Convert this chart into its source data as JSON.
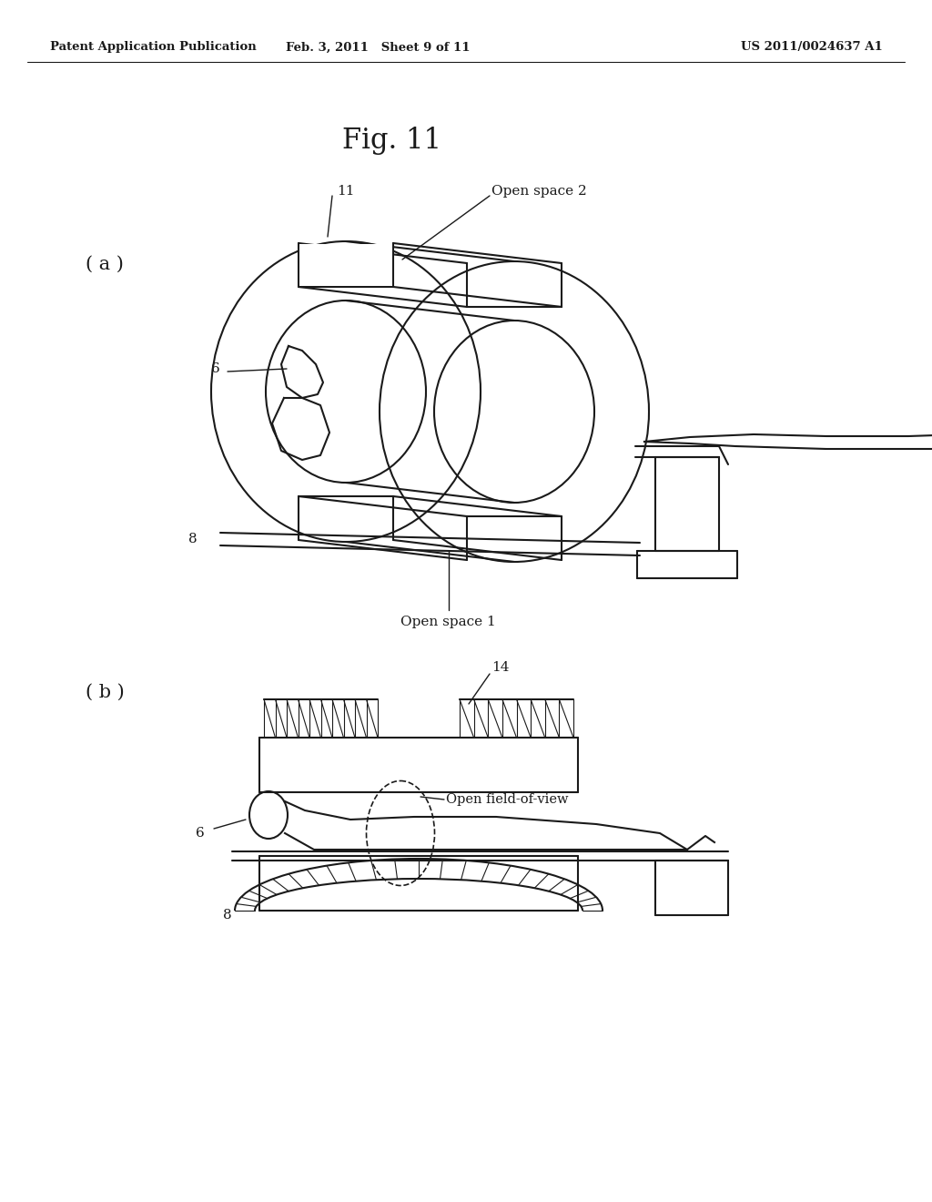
{
  "bg_color": "#ffffff",
  "line_color": "#1a1a1a",
  "header_left": "Patent Application Publication",
  "header_mid": "Feb. 3, 2011   Sheet 9 of 11",
  "header_right": "US 2011/0024637 A1",
  "fig_title": "Fig. 11",
  "label_a": "( a )",
  "label_b": "( b )",
  "label_11": "11",
  "label_6a": "6",
  "label_8a": "8",
  "label_open_space2": "Open space 2",
  "label_open_space1": "Open space 1",
  "label_6b": "6",
  "label_8b": "8",
  "label_14": "14",
  "label_open_fov": "Open field-of-view"
}
